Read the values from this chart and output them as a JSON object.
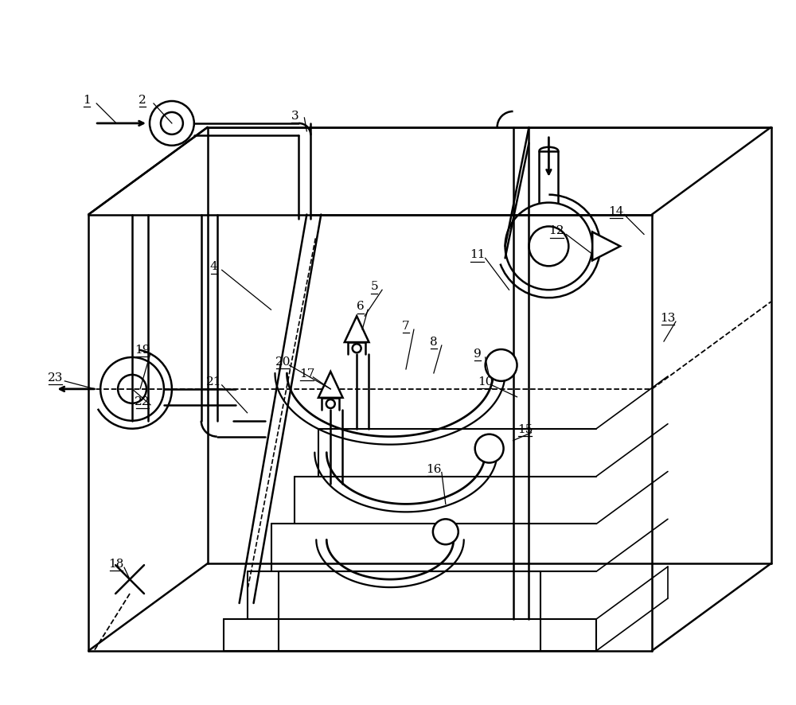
{
  "bg_color": "#ffffff",
  "lc": "#000000",
  "lw": 1.8,
  "fig_w": 10.0,
  "fig_h": 8.87,
  "dpi": 100
}
